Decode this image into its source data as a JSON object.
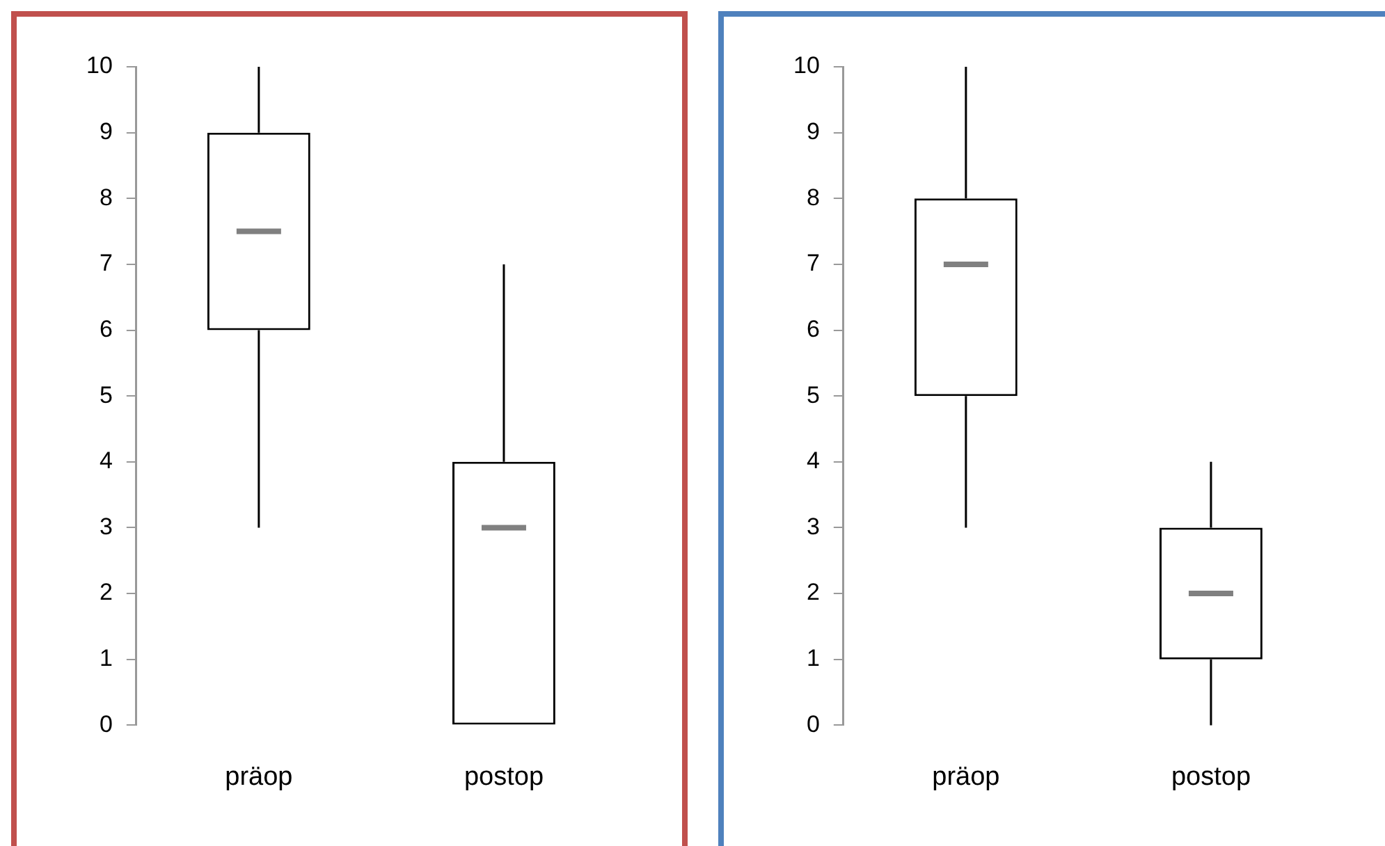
{
  "chart_data": [
    {
      "type": "box",
      "categories": [
        "präop",
        "postop"
      ],
      "boxes": [
        {
          "low": 3,
          "q1": 6,
          "median": 7.5,
          "q3": 9,
          "high": 10
        },
        {
          "low": 0,
          "q1": 0,
          "median": 3,
          "q3": 4,
          "high": 7
        }
      ],
      "ylim": [
        0,
        10
      ],
      "yticks": [
        0,
        1,
        2,
        3,
        4,
        5,
        6,
        7,
        8,
        9,
        10
      ],
      "grid": false,
      "legend": false
    },
    {
      "type": "box",
      "categories": [
        "präop",
        "postop"
      ],
      "boxes": [
        {
          "low": 3,
          "q1": 5,
          "median": 7,
          "q3": 8,
          "high": 10
        },
        {
          "low": 0,
          "q1": 1,
          "median": 2,
          "q3": 3,
          "high": 4
        }
      ],
      "ylim": [
        0,
        10
      ],
      "yticks": [
        0,
        1,
        2,
        3,
        4,
        5,
        6,
        7,
        8,
        9,
        10
      ],
      "grid": false,
      "legend": false
    }
  ]
}
